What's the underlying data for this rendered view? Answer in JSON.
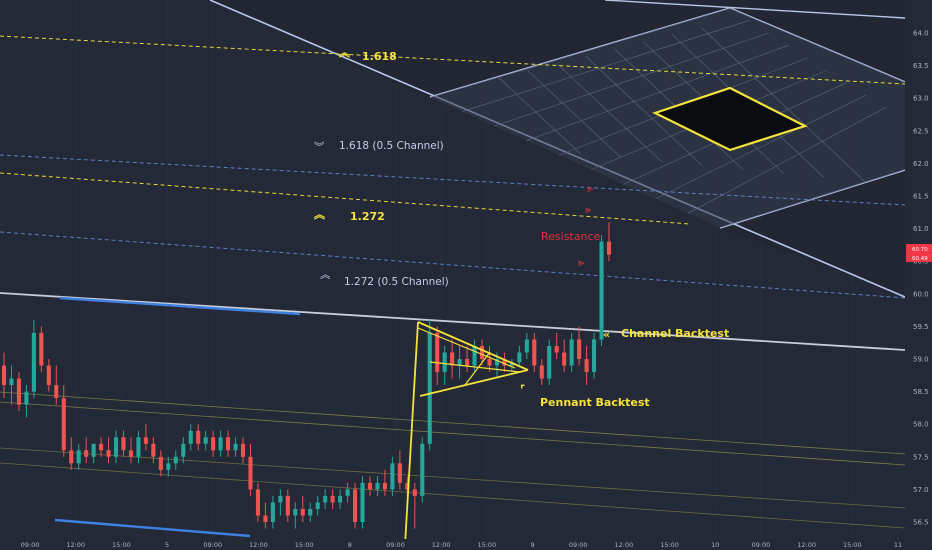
{
  "chart_data": {
    "type": "candlestick",
    "y_axis": {
      "ticks": [
        "64.0",
        "63.5",
        "63.0",
        "62.5",
        "62.0",
        "61.5",
        "61.0",
        "60.5",
        "60.0",
        "59.5",
        "59.0",
        "58.5",
        "58.0",
        "57.5",
        "57.0",
        "56.5"
      ],
      "price_badges": [
        "60.70",
        "60.49"
      ],
      "badge_colors": [
        "#f23645",
        "#f23645"
      ]
    },
    "x_axis": {
      "ticks": [
        "09:00",
        "12:00",
        "15:00",
        "5",
        "09:00",
        "12:00",
        "15:00",
        "8",
        "09:00",
        "12:00",
        "15:00",
        "9",
        "09:00",
        "12:00",
        "15:00",
        "10",
        "09:00",
        "12:00",
        "15:00",
        "11"
      ]
    },
    "levels": [
      {
        "label": "1.618",
        "color": "#f5e33b",
        "style": "dashed"
      },
      {
        "label": "1.618 (0.5 Channel)",
        "color": "#6f8fd4",
        "style": "dashed"
      },
      {
        "label": "1.272",
        "color": "#f5e33b",
        "style": "dashed"
      },
      {
        "label": "1.272 (0.5 Channel)",
        "color": "#6f8fd4",
        "style": "dashed"
      }
    ],
    "annotations": [
      {
        "text": "Resistance",
        "color": "#e0313c"
      },
      {
        "text": "Channel Backtest",
        "color": "#f5e33b"
      },
      {
        "text": "Pennant Backtest",
        "color": "#f5e33b"
      }
    ],
    "candles": [
      {
        "o": 58.9,
        "h": 59.1,
        "l": 58.4,
        "c": 58.6
      },
      {
        "o": 58.6,
        "h": 58.9,
        "l": 58.3,
        "c": 58.7
      },
      {
        "o": 58.7,
        "h": 58.8,
        "l": 58.2,
        "c": 58.3
      },
      {
        "o": 58.3,
        "h": 58.6,
        "l": 58.1,
        "c": 58.5
      },
      {
        "o": 58.5,
        "h": 59.6,
        "l": 58.4,
        "c": 59.4
      },
      {
        "o": 59.4,
        "h": 59.5,
        "l": 58.8,
        "c": 58.9
      },
      {
        "o": 58.9,
        "h": 59.0,
        "l": 58.5,
        "c": 58.6
      },
      {
        "o": 58.6,
        "h": 58.9,
        "l": 58.3,
        "c": 58.4
      },
      {
        "o": 58.4,
        "h": 58.6,
        "l": 57.5,
        "c": 57.6
      },
      {
        "o": 57.6,
        "h": 57.8,
        "l": 57.3,
        "c": 57.4
      },
      {
        "o": 57.4,
        "h": 57.7,
        "l": 57.3,
        "c": 57.6
      },
      {
        "o": 57.6,
        "h": 57.8,
        "l": 57.4,
        "c": 57.5
      },
      {
        "o": 57.5,
        "h": 57.7,
        "l": 57.4,
        "c": 57.7
      },
      {
        "o": 57.7,
        "h": 57.8,
        "l": 57.5,
        "c": 57.6
      },
      {
        "o": 57.6,
        "h": 57.8,
        "l": 57.4,
        "c": 57.5
      },
      {
        "o": 57.5,
        "h": 57.9,
        "l": 57.4,
        "c": 57.8
      },
      {
        "o": 57.8,
        "h": 57.9,
        "l": 57.5,
        "c": 57.6
      },
      {
        "o": 57.6,
        "h": 57.8,
        "l": 57.4,
        "c": 57.5
      },
      {
        "o": 57.5,
        "h": 57.9,
        "l": 57.4,
        "c": 57.8
      },
      {
        "o": 57.8,
        "h": 58.0,
        "l": 57.6,
        "c": 57.7
      },
      {
        "o": 57.7,
        "h": 57.8,
        "l": 57.4,
        "c": 57.5
      },
      {
        "o": 57.5,
        "h": 57.6,
        "l": 57.2,
        "c": 57.3
      },
      {
        "o": 57.3,
        "h": 57.5,
        "l": 57.2,
        "c": 57.4
      },
      {
        "o": 57.4,
        "h": 57.6,
        "l": 57.3,
        "c": 57.5
      },
      {
        "o": 57.5,
        "h": 57.8,
        "l": 57.4,
        "c": 57.7
      },
      {
        "o": 57.7,
        "h": 58.0,
        "l": 57.6,
        "c": 57.9
      },
      {
        "o": 57.9,
        "h": 58.0,
        "l": 57.6,
        "c": 57.7
      },
      {
        "o": 57.7,
        "h": 57.9,
        "l": 57.6,
        "c": 57.8
      },
      {
        "o": 57.8,
        "h": 57.9,
        "l": 57.5,
        "c": 57.6
      },
      {
        "o": 57.6,
        "h": 57.9,
        "l": 57.5,
        "c": 57.8
      },
      {
        "o": 57.8,
        "h": 57.9,
        "l": 57.5,
        "c": 57.6
      },
      {
        "o": 57.6,
        "h": 57.8,
        "l": 57.5,
        "c": 57.7
      },
      {
        "o": 57.7,
        "h": 57.8,
        "l": 57.4,
        "c": 57.5
      },
      {
        "o": 57.5,
        "h": 57.7,
        "l": 56.9,
        "c": 57.0
      },
      {
        "o": 57.0,
        "h": 57.1,
        "l": 56.5,
        "c": 56.6
      },
      {
        "o": 56.6,
        "h": 56.8,
        "l": 56.4,
        "c": 56.5
      },
      {
        "o": 56.5,
        "h": 56.9,
        "l": 56.4,
        "c": 56.8
      },
      {
        "o": 56.8,
        "h": 57.0,
        "l": 56.6,
        "c": 56.9
      },
      {
        "o": 56.9,
        "h": 57.0,
        "l": 56.5,
        "c": 56.6
      },
      {
        "o": 56.6,
        "h": 56.8,
        "l": 56.4,
        "c": 56.7
      },
      {
        "o": 56.7,
        "h": 56.9,
        "l": 56.5,
        "c": 56.6
      },
      {
        "o": 56.6,
        "h": 56.8,
        "l": 56.5,
        "c": 56.7
      },
      {
        "o": 56.7,
        "h": 56.9,
        "l": 56.6,
        "c": 56.8
      },
      {
        "o": 56.8,
        "h": 57.0,
        "l": 56.7,
        "c": 56.9
      },
      {
        "o": 56.9,
        "h": 57.0,
        "l": 56.7,
        "c": 56.8
      },
      {
        "o": 56.8,
        "h": 57.0,
        "l": 56.7,
        "c": 56.9
      },
      {
        "o": 56.9,
        "h": 57.1,
        "l": 56.8,
        "c": 57.0
      },
      {
        "o": 57.0,
        "h": 57.1,
        "l": 56.4,
        "c": 56.5
      },
      {
        "o": 56.5,
        "h": 57.2,
        "l": 56.4,
        "c": 57.1
      },
      {
        "o": 57.1,
        "h": 57.2,
        "l": 56.9,
        "c": 57.0
      },
      {
        "o": 57.0,
        "h": 57.2,
        "l": 56.9,
        "c": 57.1
      },
      {
        "o": 57.1,
        "h": 57.3,
        "l": 56.9,
        "c": 57.0
      },
      {
        "o": 57.0,
        "h": 57.5,
        "l": 56.9,
        "c": 57.4
      },
      {
        "o": 57.4,
        "h": 57.6,
        "l": 57.0,
        "c": 57.1
      },
      {
        "o": 57.1,
        "h": 57.2,
        "l": 56.9,
        "c": 57.0
      },
      {
        "o": 57.0,
        "h": 57.1,
        "l": 56.4,
        "c": 56.9
      },
      {
        "o": 56.9,
        "h": 57.8,
        "l": 56.8,
        "c": 57.7
      },
      {
        "o": 57.7,
        "h": 59.6,
        "l": 57.6,
        "c": 59.4
      },
      {
        "o": 59.4,
        "h": 59.5,
        "l": 58.6,
        "c": 58.8
      },
      {
        "o": 58.8,
        "h": 59.2,
        "l": 58.6,
        "c": 59.1
      },
      {
        "o": 59.1,
        "h": 59.3,
        "l": 58.7,
        "c": 58.9
      },
      {
        "o": 58.9,
        "h": 59.2,
        "l": 58.7,
        "c": 59.0
      },
      {
        "o": 59.0,
        "h": 59.2,
        "l": 58.8,
        "c": 58.9
      },
      {
        "o": 58.9,
        "h": 59.3,
        "l": 58.8,
        "c": 59.2
      },
      {
        "o": 59.2,
        "h": 59.3,
        "l": 58.9,
        "c": 59.0
      },
      {
        "o": 59.0,
        "h": 59.2,
        "l": 58.8,
        "c": 58.9
      },
      {
        "o": 58.9,
        "h": 59.1,
        "l": 58.7,
        "c": 59.0
      },
      {
        "o": 59.0,
        "h": 59.1,
        "l": 58.8,
        "c": 58.9
      },
      {
        "o": 58.9,
        "h": 59.0,
        "l": 58.8,
        "c": 58.95
      },
      {
        "o": 58.95,
        "h": 59.2,
        "l": 58.9,
        "c": 59.1
      },
      {
        "o": 59.1,
        "h": 59.4,
        "l": 59.0,
        "c": 59.3
      },
      {
        "o": 59.3,
        "h": 59.4,
        "l": 58.8,
        "c": 58.9
      },
      {
        "o": 58.9,
        "h": 59.0,
        "l": 58.6,
        "c": 58.7
      },
      {
        "o": 58.7,
        "h": 59.3,
        "l": 58.6,
        "c": 59.2
      },
      {
        "o": 59.2,
        "h": 59.4,
        "l": 59.0,
        "c": 59.1
      },
      {
        "o": 59.1,
        "h": 59.3,
        "l": 58.8,
        "c": 58.9
      },
      {
        "o": 58.9,
        "h": 59.4,
        "l": 58.8,
        "c": 59.3
      },
      {
        "o": 59.3,
        "h": 59.5,
        "l": 58.9,
        "c": 59.0
      },
      {
        "o": 59.0,
        "h": 59.2,
        "l": 58.6,
        "c": 58.8
      },
      {
        "o": 58.8,
        "h": 59.4,
        "l": 58.7,
        "c": 59.3
      },
      {
        "o": 59.3,
        "h": 60.9,
        "l": 59.2,
        "c": 60.8
      },
      {
        "o": 60.8,
        "h": 61.1,
        "l": 60.5,
        "c": 60.6
      }
    ]
  }
}
